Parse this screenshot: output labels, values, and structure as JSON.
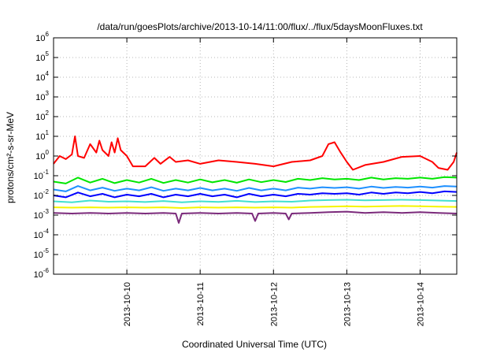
{
  "chart_data": {
    "type": "line",
    "title": "/data/run/goesPlots/archive/2013-10-14/11:00/flux/../flux/5daysMoonFluxes.txt",
    "xlabel": "Coordinated Universal Time (UTC)",
    "ylabel": "protons/cm²-s-sr-MeV",
    "y_scale": "log",
    "ylim": [
      1e-06,
      1000000.0
    ],
    "yticks": [
      {
        "value": 1e-06,
        "base": "10",
        "exp": "-6"
      },
      {
        "value": 1e-05,
        "base": "10",
        "exp": "-5"
      },
      {
        "value": 0.0001,
        "base": "10",
        "exp": "-4"
      },
      {
        "value": 0.001,
        "base": "10",
        "exp": "-3"
      },
      {
        "value": 0.01,
        "base": "10",
        "exp": "-2"
      },
      {
        "value": 0.1,
        "base": "10",
        "exp": "-1"
      },
      {
        "value": 1,
        "base": "10",
        "exp": "0"
      },
      {
        "value": 10.0,
        "base": "10",
        "exp": "1"
      },
      {
        "value": 100.0,
        "base": "10",
        "exp": "2"
      },
      {
        "value": 1000.0,
        "base": "10",
        "exp": "3"
      },
      {
        "value": 10000.0,
        "base": "10",
        "exp": "4"
      },
      {
        "value": 100000.0,
        "base": "10",
        "exp": "5"
      },
      {
        "value": 1000000.0,
        "base": "10",
        "exp": "6"
      }
    ],
    "xlim": [
      "2013-10-09T00:00",
      "2013-10-14T12:00"
    ],
    "xticks": [
      {
        "value": "2013-10-10T00:00",
        "label": "2013-10-10"
      },
      {
        "value": "2013-10-11T00:00",
        "label": "2013-10-11"
      },
      {
        "value": "2013-10-12T00:00",
        "label": "2013-10-12"
      },
      {
        "value": "2013-10-13T00:00",
        "label": "2013-10-13"
      },
      {
        "value": "2013-10-14T00:00",
        "label": "2013-10-14"
      }
    ],
    "grid": true,
    "series": [
      {
        "color": "#7b2a7b",
        "points": [
          [
            "2013-10-09T00:00",
            0.0013
          ],
          [
            "2013-10-09T06:00",
            0.0012
          ],
          [
            "2013-10-09T12:00",
            0.0013
          ],
          [
            "2013-10-09T18:00",
            0.0012
          ],
          [
            "2013-10-10T00:00",
            0.0013
          ],
          [
            "2013-10-10T06:00",
            0.0012
          ],
          [
            "2013-10-10T12:00",
            0.0013
          ],
          [
            "2013-10-10T16:00",
            0.0012
          ],
          [
            "2013-10-10T17:00",
            0.0004
          ],
          [
            "2013-10-10T18:00",
            0.0012
          ],
          [
            "2013-10-11T00:00",
            0.0013
          ],
          [
            "2013-10-11T06:00",
            0.0012
          ],
          [
            "2013-10-11T12:00",
            0.0013
          ],
          [
            "2013-10-11T17:00",
            0.0012
          ],
          [
            "2013-10-11T18:00",
            0.0005
          ],
          [
            "2013-10-11T19:00",
            0.0012
          ],
          [
            "2013-10-12T00:00",
            0.0013
          ],
          [
            "2013-10-12T04:00",
            0.0012
          ],
          [
            "2013-10-12T05:00",
            0.0006
          ],
          [
            "2013-10-12T06:00",
            0.0012
          ],
          [
            "2013-10-12T12:00",
            0.0013
          ],
          [
            "2013-10-12T18:00",
            0.0014
          ],
          [
            "2013-10-13T00:00",
            0.0015
          ],
          [
            "2013-10-13T06:00",
            0.0013
          ],
          [
            "2013-10-13T12:00",
            0.0014
          ],
          [
            "2013-10-13T18:00",
            0.0013
          ],
          [
            "2013-10-14T00:00",
            0.0014
          ],
          [
            "2013-10-14T06:00",
            0.0013
          ],
          [
            "2013-10-14T12:00",
            0.0012
          ]
        ]
      },
      {
        "color": "#f5f500",
        "points": [
          [
            "2013-10-09T00:00",
            0.0025
          ],
          [
            "2013-10-09T06:00",
            0.0024
          ],
          [
            "2013-10-09T12:00",
            0.0025
          ],
          [
            "2013-10-09T18:00",
            0.0024
          ],
          [
            "2013-10-10T00:00",
            0.0025
          ],
          [
            "2013-10-10T06:00",
            0.0024
          ],
          [
            "2013-10-10T12:00",
            0.0025
          ],
          [
            "2013-10-10T18:00",
            0.0023
          ],
          [
            "2013-10-11T00:00",
            0.0025
          ],
          [
            "2013-10-11T06:00",
            0.0024
          ],
          [
            "2013-10-11T12:00",
            0.0025
          ],
          [
            "2013-10-11T18:00",
            0.0024
          ],
          [
            "2013-10-12T00:00",
            0.0025
          ],
          [
            "2013-10-12T06:00",
            0.0024
          ],
          [
            "2013-10-12T12:00",
            0.0026
          ],
          [
            "2013-10-12T18:00",
            0.0027
          ],
          [
            "2013-10-13T00:00",
            0.0028
          ],
          [
            "2013-10-13T06:00",
            0.0027
          ],
          [
            "2013-10-13T12:00",
            0.0028
          ],
          [
            "2013-10-13T18:00",
            0.0029
          ],
          [
            "2013-10-14T00:00",
            0.0028
          ],
          [
            "2013-10-14T06:00",
            0.0027
          ],
          [
            "2013-10-14T12:00",
            0.0026
          ]
        ]
      },
      {
        "color": "#40e0d0",
        "points": [
          [
            "2013-10-09T00:00",
            0.005
          ],
          [
            "2013-10-09T06:00",
            0.0045
          ],
          [
            "2013-10-09T12:00",
            0.0055
          ],
          [
            "2013-10-09T18:00",
            0.0048
          ],
          [
            "2013-10-10T00:00",
            0.005
          ],
          [
            "2013-10-10T06:00",
            0.0046
          ],
          [
            "2013-10-10T12:00",
            0.0052
          ],
          [
            "2013-10-10T18:00",
            0.0045
          ],
          [
            "2013-10-11T00:00",
            0.005
          ],
          [
            "2013-10-11T06:00",
            0.0047
          ],
          [
            "2013-10-11T12:00",
            0.0053
          ],
          [
            "2013-10-11T18:00",
            0.0046
          ],
          [
            "2013-10-12T00:00",
            0.005
          ],
          [
            "2013-10-12T06:00",
            0.0048
          ],
          [
            "2013-10-12T12:00",
            0.0055
          ],
          [
            "2013-10-12T18:00",
            0.0058
          ],
          [
            "2013-10-13T00:00",
            0.006
          ],
          [
            "2013-10-13T06:00",
            0.0056
          ],
          [
            "2013-10-13T12:00",
            0.0058
          ],
          [
            "2013-10-13T18:00",
            0.006
          ],
          [
            "2013-10-14T00:00",
            0.0058
          ],
          [
            "2013-10-14T06:00",
            0.0055
          ],
          [
            "2013-10-14T12:00",
            0.0052
          ]
        ]
      },
      {
        "color": "#0000ff",
        "points": [
          [
            "2013-10-09T00:00",
            0.01
          ],
          [
            "2013-10-09T04:00",
            0.008
          ],
          [
            "2013-10-09T08:00",
            0.014
          ],
          [
            "2013-10-09T12:00",
            0.009
          ],
          [
            "2013-10-09T16:00",
            0.012
          ],
          [
            "2013-10-09T20:00",
            0.008
          ],
          [
            "2013-10-10T00:00",
            0.011
          ],
          [
            "2013-10-10T04:00",
            0.009
          ],
          [
            "2013-10-10T08:00",
            0.012
          ],
          [
            "2013-10-10T12:00",
            0.008
          ],
          [
            "2013-10-10T16:00",
            0.011
          ],
          [
            "2013-10-10T20:00",
            0.009
          ],
          [
            "2013-10-11T00:00",
            0.012
          ],
          [
            "2013-10-11T04:00",
            0.009
          ],
          [
            "2013-10-11T08:00",
            0.011
          ],
          [
            "2013-10-11T12:00",
            0.008
          ],
          [
            "2013-10-11T16:00",
            0.012
          ],
          [
            "2013-10-11T20:00",
            0.009
          ],
          [
            "2013-10-12T00:00",
            0.011
          ],
          [
            "2013-10-12T04:00",
            0.009
          ],
          [
            "2013-10-12T08:00",
            0.012
          ],
          [
            "2013-10-12T12:00",
            0.011
          ],
          [
            "2013-10-12T16:00",
            0.013
          ],
          [
            "2013-10-12T20:00",
            0.012
          ],
          [
            "2013-10-13T00:00",
            0.013
          ],
          [
            "2013-10-13T04:00",
            0.011
          ],
          [
            "2013-10-13T08:00",
            0.014
          ],
          [
            "2013-10-13T12:00",
            0.012
          ],
          [
            "2013-10-13T16:00",
            0.014
          ],
          [
            "2013-10-13T20:00",
            0.013
          ],
          [
            "2013-10-14T00:00",
            0.015
          ],
          [
            "2013-10-14T04:00",
            0.013
          ],
          [
            "2013-10-14T08:00",
            0.016
          ],
          [
            "2013-10-14T12:00",
            0.015
          ]
        ]
      },
      {
        "color": "#1e90ff",
        "points": [
          [
            "2013-10-09T00:00",
            0.02
          ],
          [
            "2013-10-09T04:00",
            0.016
          ],
          [
            "2013-10-09T08:00",
            0.03
          ],
          [
            "2013-10-09T12:00",
            0.018
          ],
          [
            "2013-10-09T16:00",
            0.025
          ],
          [
            "2013-10-09T20:00",
            0.017
          ],
          [
            "2013-10-10T00:00",
            0.022
          ],
          [
            "2013-10-10T04:00",
            0.018
          ],
          [
            "2013-10-10T08:00",
            0.026
          ],
          [
            "2013-10-10T12:00",
            0.017
          ],
          [
            "2013-10-10T16:00",
            0.022
          ],
          [
            "2013-10-10T20:00",
            0.018
          ],
          [
            "2013-10-11T00:00",
            0.024
          ],
          [
            "2013-10-11T04:00",
            0.018
          ],
          [
            "2013-10-11T08:00",
            0.022
          ],
          [
            "2013-10-11T12:00",
            0.017
          ],
          [
            "2013-10-11T16:00",
            0.024
          ],
          [
            "2013-10-11T20:00",
            0.018
          ],
          [
            "2013-10-12T00:00",
            0.022
          ],
          [
            "2013-10-12T04:00",
            0.018
          ],
          [
            "2013-10-12T08:00",
            0.025
          ],
          [
            "2013-10-12T12:00",
            0.022
          ],
          [
            "2013-10-12T16:00",
            0.026
          ],
          [
            "2013-10-12T20:00",
            0.024
          ],
          [
            "2013-10-13T00:00",
            0.026
          ],
          [
            "2013-10-13T04:00",
            0.022
          ],
          [
            "2013-10-13T08:00",
            0.028
          ],
          [
            "2013-10-13T12:00",
            0.024
          ],
          [
            "2013-10-13T16:00",
            0.027
          ],
          [
            "2013-10-13T20:00",
            0.025
          ],
          [
            "2013-10-14T00:00",
            0.028
          ],
          [
            "2013-10-14T04:00",
            0.025
          ],
          [
            "2013-10-14T08:00",
            0.03
          ],
          [
            "2013-10-14T12:00",
            0.028
          ]
        ]
      },
      {
        "color": "#00e600",
        "points": [
          [
            "2013-10-09T00:00",
            0.05
          ],
          [
            "2013-10-09T04:00",
            0.04
          ],
          [
            "2013-10-09T08:00",
            0.08
          ],
          [
            "2013-10-09T12:00",
            0.045
          ],
          [
            "2013-10-09T16:00",
            0.07
          ],
          [
            "2013-10-09T20:00",
            0.042
          ],
          [
            "2013-10-10T00:00",
            0.06
          ],
          [
            "2013-10-10T04:00",
            0.045
          ],
          [
            "2013-10-10T08:00",
            0.07
          ],
          [
            "2013-10-10T12:00",
            0.043
          ],
          [
            "2013-10-10T16:00",
            0.06
          ],
          [
            "2013-10-10T20:00",
            0.045
          ],
          [
            "2013-10-11T00:00",
            0.065
          ],
          [
            "2013-10-11T04:00",
            0.046
          ],
          [
            "2013-10-11T08:00",
            0.06
          ],
          [
            "2013-10-11T12:00",
            0.044
          ],
          [
            "2013-10-11T16:00",
            0.065
          ],
          [
            "2013-10-11T20:00",
            0.047
          ],
          [
            "2013-10-12T00:00",
            0.06
          ],
          [
            "2013-10-12T04:00",
            0.048
          ],
          [
            "2013-10-12T08:00",
            0.07
          ],
          [
            "2013-10-12T12:00",
            0.06
          ],
          [
            "2013-10-12T16:00",
            0.075
          ],
          [
            "2013-10-12T20:00",
            0.065
          ],
          [
            "2013-10-13T00:00",
            0.07
          ],
          [
            "2013-10-13T04:00",
            0.06
          ],
          [
            "2013-10-13T08:00",
            0.08
          ],
          [
            "2013-10-13T12:00",
            0.065
          ],
          [
            "2013-10-13T16:00",
            0.075
          ],
          [
            "2013-10-13T20:00",
            0.07
          ],
          [
            "2013-10-14T00:00",
            0.08
          ],
          [
            "2013-10-14T04:00",
            0.07
          ],
          [
            "2013-10-14T08:00",
            0.085
          ],
          [
            "2013-10-14T12:00",
            0.08
          ]
        ]
      },
      {
        "color": "#ff0000",
        "points": [
          [
            "2013-10-09T00:00",
            0.4
          ],
          [
            "2013-10-09T02:00",
            1.0
          ],
          [
            "2013-10-09T04:00",
            0.7
          ],
          [
            "2013-10-09T06:00",
            1.2
          ],
          [
            "2013-10-09T07:00",
            10
          ],
          [
            "2013-10-09T08:00",
            1.0
          ],
          [
            "2013-10-09T10:00",
            0.8
          ],
          [
            "2013-10-09T12:00",
            4.0
          ],
          [
            "2013-10-09T14:00",
            1.5
          ],
          [
            "2013-10-09T15:00",
            6.0
          ],
          [
            "2013-10-09T16:00",
            2.0
          ],
          [
            "2013-10-09T18:00",
            1.0
          ],
          [
            "2013-10-09T19:00",
            5.0
          ],
          [
            "2013-10-09T20:00",
            1.5
          ],
          [
            "2013-10-09T21:00",
            8.0
          ],
          [
            "2013-10-09T22:00",
            2.0
          ],
          [
            "2013-10-10T00:00",
            1.0
          ],
          [
            "2013-10-10T02:00",
            0.3
          ],
          [
            "2013-10-10T06:00",
            0.3
          ],
          [
            "2013-10-10T09:00",
            0.8
          ],
          [
            "2013-10-10T11:00",
            0.4
          ],
          [
            "2013-10-10T14:00",
            0.9
          ],
          [
            "2013-10-10T16:00",
            0.5
          ],
          [
            "2013-10-10T20:00",
            0.6
          ],
          [
            "2013-10-11T00:00",
            0.4
          ],
          [
            "2013-10-11T06:00",
            0.6
          ],
          [
            "2013-10-11T12:00",
            0.5
          ],
          [
            "2013-10-11T18:00",
            0.4
          ],
          [
            "2013-10-12T00:00",
            0.3
          ],
          [
            "2013-10-12T06:00",
            0.5
          ],
          [
            "2013-10-12T12:00",
            0.6
          ],
          [
            "2013-10-12T16:00",
            1.0
          ],
          [
            "2013-10-12T18:00",
            4.0
          ],
          [
            "2013-10-12T20:00",
            5.0
          ],
          [
            "2013-10-12T22:00",
            1.5
          ],
          [
            "2013-10-13T00:00",
            0.5
          ],
          [
            "2013-10-13T02:00",
            0.2
          ],
          [
            "2013-10-13T06:00",
            0.35
          ],
          [
            "2013-10-13T12:00",
            0.5
          ],
          [
            "2013-10-13T18:00",
            0.9
          ],
          [
            "2013-10-14T00:00",
            1.0
          ],
          [
            "2013-10-14T04:00",
            0.5
          ],
          [
            "2013-10-14T06:00",
            0.25
          ],
          [
            "2013-10-14T09:00",
            0.2
          ],
          [
            "2013-10-14T11:00",
            0.5
          ],
          [
            "2013-10-14T12:00",
            1.5
          ]
        ]
      }
    ]
  }
}
